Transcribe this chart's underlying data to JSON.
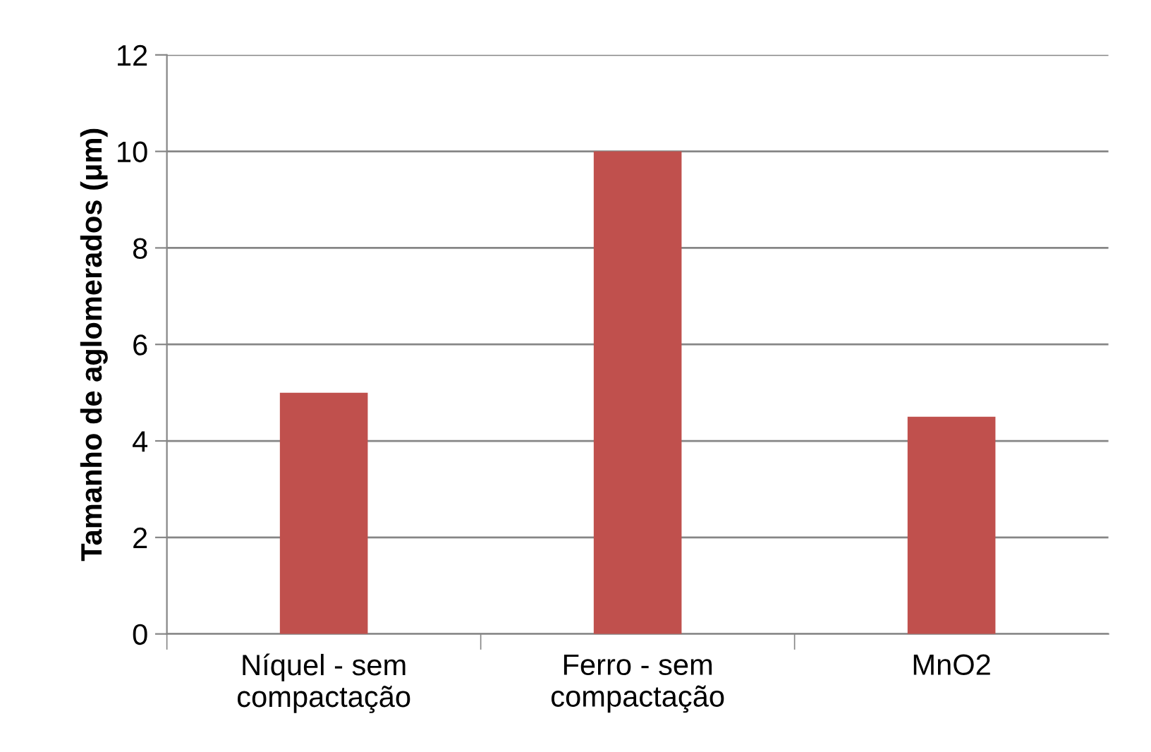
{
  "chart_data": {
    "type": "bar",
    "ylabel": "Tamanho de aglomerados (μm)",
    "categories": [
      "Níquel - sem\ncompactação",
      "Ferro - sem\ncompactação",
      "MnO2"
    ],
    "values": [
      5,
      10,
      4.5
    ],
    "color": "#c0504d",
    "ylim": [
      0,
      12
    ],
    "yticks": [
      0,
      2,
      4,
      6,
      8,
      10,
      12
    ],
    "grid": "y",
    "legend": false
  }
}
